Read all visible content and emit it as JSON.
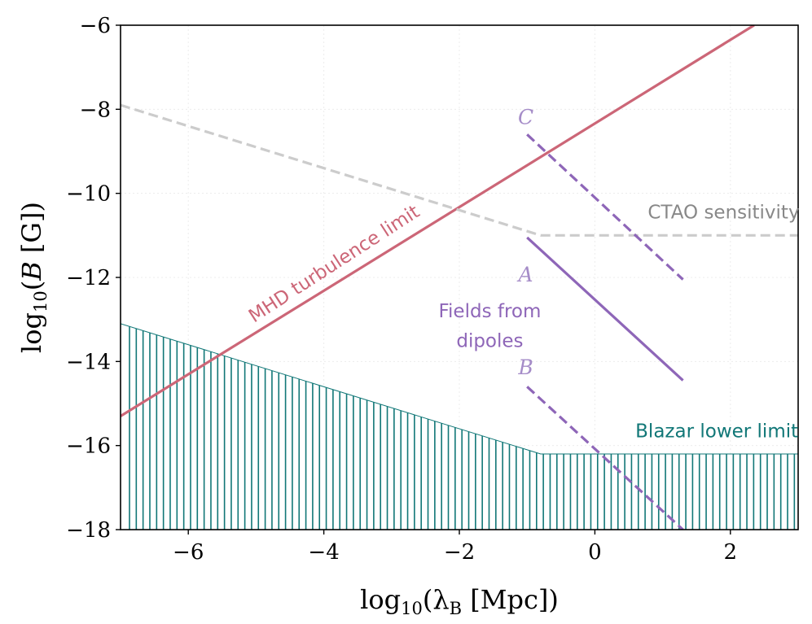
{
  "chart_data": {
    "type": "line",
    "title": "",
    "xlabel": "log10(λB [Mpc])",
    "ylabel": "log10(B [G])",
    "xlim": [
      -7,
      3
    ],
    "ylim": [
      -18,
      -6
    ],
    "xticks": [
      -6,
      -4,
      -2,
      0,
      2
    ],
    "yticks": [
      -18,
      -16,
      -14,
      -12,
      -10,
      -8,
      -6
    ],
    "xtick_labels": [
      "−6",
      "−4",
      "−2",
      "0",
      "2"
    ],
    "ytick_labels": [
      "−18",
      "−16",
      "−14",
      "−12",
      "−10",
      "−8",
      "−6"
    ],
    "grid": true,
    "series": [
      {
        "name": "MHD turbulence limit",
        "style": "solid",
        "color": "#cc6677",
        "x": [
          -7,
          2.35
        ],
        "y": [
          -15.3,
          -6.0
        ]
      },
      {
        "name": "CTAO sensitivity",
        "style": "dashed",
        "color": "#cccccc",
        "x": [
          -7,
          -0.8,
          3
        ],
        "y": [
          -7.9,
          -11.0,
          -11.0
        ]
      },
      {
        "name": "Blazar lower limit",
        "style": "hatched-fill",
        "color": "#117777",
        "x": [
          -7,
          -0.8,
          3
        ],
        "y": [
          -13.1,
          -16.2,
          -16.2
        ]
      },
      {
        "name": "A",
        "style": "solid",
        "color": "#8e66b8",
        "x": [
          -1.0,
          1.3
        ],
        "y": [
          -11.05,
          -14.45
        ]
      },
      {
        "name": "B",
        "style": "dashed",
        "color": "#8e66b8",
        "x": [
          -1.0,
          1.3
        ],
        "y": [
          -14.6,
          -18.0
        ]
      },
      {
        "name": "C",
        "style": "dashed",
        "color": "#8e66b8",
        "x": [
          -1.0,
          1.3
        ],
        "y": [
          -8.6,
          -12.05
        ]
      }
    ],
    "annotations": [
      {
        "id": "mhd",
        "text": "MHD turbulence limit",
        "x": -3.8,
        "y": -11.8,
        "color": "#cc6677",
        "rotation_deg": -33
      },
      {
        "id": "ctao",
        "text": "CTAO sensitivity",
        "x": 1.9,
        "y": -10.6,
        "color": "#888888",
        "rotation_deg": 0
      },
      {
        "id": "blazar",
        "text": "Blazar lower limit",
        "x": 1.8,
        "y": -15.8,
        "color": "#117777",
        "rotation_deg": 0
      },
      {
        "id": "fields1",
        "text": "Fields from",
        "x": -1.55,
        "y": -12.95,
        "color": "#8e66b8",
        "rotation_deg": 0
      },
      {
        "id": "fields2",
        "text": "dipoles",
        "x": -1.55,
        "y": -13.65,
        "color": "#8e66b8",
        "rotation_deg": 0
      },
      {
        "id": "labelA",
        "text": "A",
        "x": -1.02,
        "y": -12.1,
        "color": "#a58cc8",
        "rotation_deg": 0
      },
      {
        "id": "labelB",
        "text": "B",
        "x": -1.02,
        "y": -14.3,
        "color": "#a58cc8",
        "rotation_deg": 0
      },
      {
        "id": "labelC",
        "text": "C",
        "x": -1.02,
        "y": -8.35,
        "color": "#a58cc8",
        "rotation_deg": 0
      }
    ]
  }
}
